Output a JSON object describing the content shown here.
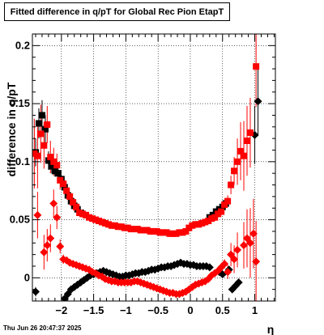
{
  "chart_data": {
    "type": "scatter",
    "title": "Fitted difference in q/pT for Global Rec Pion EtapT",
    "xlabel": "η",
    "ylabel": "difference in q/pT",
    "xlim": [
      -2.45,
      1.32
    ],
    "ylim": [
      -0.02,
      0.21
    ],
    "x_ticks": [
      -2,
      -1.5,
      -1,
      -0.5,
      0,
      0.5,
      1
    ],
    "x_tick_labels": [
      "−2",
      "−1.5",
      "−1",
      "−0.5",
      "0",
      "0.5",
      "1"
    ],
    "y_ticks": [
      0,
      0.05,
      0.1,
      0.15,
      0.2
    ],
    "y_tick_labels": [
      "0",
      "0.05",
      "0.1",
      "0.15",
      "0.2"
    ],
    "grid": true,
    "series": [
      {
        "color": "#000000",
        "marker": "square",
        "points": [
          [
            -2.4,
            0.108,
            0.012
          ],
          [
            -2.35,
            0.133,
            0.013
          ],
          [
            -2.3,
            0.14,
            0.013
          ],
          [
            -2.25,
            0.128,
            0.012
          ],
          [
            -2.2,
            0.101,
            0.008
          ],
          [
            -2.15,
            0.096,
            0.006
          ],
          [
            -2.1,
            0.092,
            0.005
          ],
          [
            -2.05,
            0.09,
            0.004
          ],
          [
            -2.0,
            0.085,
            0.003
          ],
          [
            -1.95,
            0.078,
            0.003
          ],
          [
            -1.9,
            0.071,
            0.002
          ],
          [
            -1.85,
            0.066,
            0.002
          ],
          [
            -1.8,
            0.062,
            0.002
          ],
          [
            -1.75,
            0.059,
            0.002
          ],
          [
            -1.7,
            0.056,
            0.002
          ],
          [
            0.3,
            0.052,
            0.002
          ],
          [
            0.35,
            0.054,
            0.002
          ],
          [
            0.4,
            0.057,
            0.002
          ],
          [
            0.45,
            0.059,
            0.002
          ],
          [
            0.5,
            0.061,
            0.002
          ],
          [
            0.55,
            0.064,
            0.003
          ]
        ]
      },
      {
        "color": "#000000",
        "marker": "diamond",
        "points": [
          [
            -2.4,
            -0.012,
            0.004
          ],
          [
            -1.95,
            -0.018,
            0.002
          ],
          [
            -1.9,
            -0.014,
            0.002
          ],
          [
            -1.85,
            -0.01,
            0.002
          ],
          [
            -1.8,
            -0.008,
            0.002
          ],
          [
            -1.75,
            -0.006,
            0.002
          ],
          [
            -1.7,
            -0.004,
            0.002
          ],
          [
            -1.65,
            -0.002,
            0.002
          ],
          [
            -1.6,
            0.0,
            0.002
          ],
          [
            -1.55,
            0.002,
            0.002
          ],
          [
            -1.5,
            0.003,
            0.002
          ],
          [
            -1.45,
            0.004,
            0.002
          ],
          [
            -1.4,
            0.005,
            0.002
          ],
          [
            -1.35,
            0.006,
            0.002
          ],
          [
            -1.3,
            0.005,
            0.002
          ],
          [
            -1.25,
            0.004,
            0.002
          ],
          [
            -1.2,
            0.003,
            0.002
          ],
          [
            -1.15,
            0.002,
            0.002
          ],
          [
            -1.1,
            0.001,
            0.002
          ],
          [
            -1.05,
            0.001,
            0.002
          ],
          [
            -1.0,
            0.002,
            0.002
          ],
          [
            -0.95,
            0.002,
            0.002
          ],
          [
            -0.9,
            0.003,
            0.002
          ],
          [
            -0.85,
            0.004,
            0.002
          ],
          [
            -0.8,
            0.004,
            0.002
          ],
          [
            -0.75,
            0.005,
            0.002
          ],
          [
            -0.7,
            0.005,
            0.002
          ],
          [
            -0.65,
            0.006,
            0.002
          ],
          [
            -0.6,
            0.007,
            0.002
          ],
          [
            -0.55,
            0.007,
            0.002
          ],
          [
            -0.5,
            0.008,
            0.002
          ],
          [
            -0.45,
            0.009,
            0.002
          ],
          [
            -0.4,
            0.009,
            0.002
          ],
          [
            -0.35,
            0.01,
            0.002
          ],
          [
            -0.3,
            0.01,
            0.002
          ],
          [
            -0.25,
            0.011,
            0.002
          ],
          [
            -0.2,
            0.012,
            0.002
          ],
          [
            -0.15,
            0.013,
            0.002
          ],
          [
            -0.1,
            0.012,
            0.002
          ],
          [
            -0.05,
            0.012,
            0.002
          ],
          [
            0.0,
            0.011,
            0.002
          ],
          [
            0.05,
            0.011,
            0.002
          ],
          [
            0.1,
            0.01,
            0.002
          ],
          [
            0.15,
            0.01,
            0.002
          ],
          [
            0.2,
            0.01,
            0.002
          ],
          [
            0.25,
            0.01,
            0.002
          ],
          [
            0.3,
            0.009,
            0.002
          ],
          [
            0.45,
            0.005,
            0.002
          ],
          [
            0.5,
            0.003,
            0.002
          ],
          [
            0.6,
            0.007,
            0.003
          ],
          [
            0.65,
            -0.01,
            0.003
          ],
          [
            0.7,
            -0.007,
            0.003
          ],
          [
            0.75,
            -0.004,
            0.003
          ],
          [
            1.0,
            0.123,
            0.025
          ],
          [
            1.05,
            0.152,
            0.03
          ]
        ]
      },
      {
        "color": "#ff0000",
        "marker": "square",
        "points": [
          [
            -2.42,
            0.107,
            0.03
          ],
          [
            -2.37,
            0.105,
            0.028
          ],
          [
            -2.32,
            0.124,
            0.025
          ],
          [
            -2.27,
            0.114,
            0.02
          ],
          [
            -2.22,
            0.132,
            0.016
          ],
          [
            -2.17,
            0.104,
            0.014
          ],
          [
            -2.12,
            0.1,
            0.012
          ],
          [
            -2.07,
            0.097,
            0.01
          ],
          [
            -2.02,
            0.084,
            0.008
          ],
          [
            -1.97,
            0.081,
            0.006
          ],
          [
            -1.92,
            0.075,
            0.005
          ],
          [
            -1.87,
            0.07,
            0.004
          ],
          [
            -1.82,
            0.065,
            0.004
          ],
          [
            -1.77,
            0.061,
            0.003
          ],
          [
            -1.72,
            0.056,
            0.003
          ],
          [
            -1.67,
            0.055,
            0.003
          ],
          [
            -1.62,
            0.054,
            0.002
          ],
          [
            -1.57,
            0.052,
            0.002
          ],
          [
            -1.52,
            0.051,
            0.002
          ],
          [
            -1.47,
            0.05,
            0.002
          ],
          [
            -1.42,
            0.049,
            0.002
          ],
          [
            -1.37,
            0.048,
            0.002
          ],
          [
            -1.32,
            0.047,
            0.002
          ],
          [
            -1.27,
            0.046,
            0.002
          ],
          [
            -1.22,
            0.045,
            0.002
          ],
          [
            -1.17,
            0.045,
            0.002
          ],
          [
            -1.12,
            0.044,
            0.002
          ],
          [
            -1.07,
            0.044,
            0.002
          ],
          [
            -1.02,
            0.043,
            0.002
          ],
          [
            -0.97,
            0.043,
            0.002
          ],
          [
            -0.92,
            0.042,
            0.002
          ],
          [
            -0.87,
            0.042,
            0.002
          ],
          [
            -0.82,
            0.042,
            0.002
          ],
          [
            -0.77,
            0.041,
            0.002
          ],
          [
            -0.72,
            0.041,
            0.002
          ],
          [
            -0.67,
            0.041,
            0.002
          ],
          [
            -0.62,
            0.04,
            0.002
          ],
          [
            -0.57,
            0.04,
            0.002
          ],
          [
            -0.52,
            0.04,
            0.002
          ],
          [
            -0.47,
            0.039,
            0.002
          ],
          [
            -0.42,
            0.039,
            0.002
          ],
          [
            -0.37,
            0.039,
            0.002
          ],
          [
            -0.32,
            0.038,
            0.002
          ],
          [
            -0.27,
            0.038,
            0.002
          ],
          [
            -0.22,
            0.038,
            0.002
          ],
          [
            -0.17,
            0.039,
            0.002
          ],
          [
            -0.12,
            0.039,
            0.002
          ],
          [
            -0.07,
            0.04,
            0.002
          ],
          [
            -0.02,
            0.043,
            0.002
          ],
          [
            0.03,
            0.045,
            0.002
          ],
          [
            0.08,
            0.046,
            0.002
          ],
          [
            0.13,
            0.046,
            0.002
          ],
          [
            0.18,
            0.047,
            0.002
          ],
          [
            0.23,
            0.048,
            0.002
          ],
          [
            0.28,
            0.049,
            0.002
          ],
          [
            0.33,
            0.051,
            0.002
          ],
          [
            0.38,
            0.052,
            0.003
          ],
          [
            0.43,
            0.055,
            0.003
          ],
          [
            0.48,
            0.057,
            0.003
          ],
          [
            0.53,
            0.063,
            0.004
          ],
          [
            0.58,
            0.066,
            0.005
          ],
          [
            0.63,
            0.08,
            0.008
          ],
          [
            0.68,
            0.092,
            0.012
          ],
          [
            0.73,
            0.1,
            0.02
          ],
          [
            0.78,
            0.109,
            0.025
          ],
          [
            0.83,
            0.105,
            0.03
          ],
          [
            0.88,
            0.118,
            0.03
          ],
          [
            0.93,
            0.125,
            0.03
          ],
          [
            1.02,
            0.182,
            0.035
          ]
        ]
      },
      {
        "color": "#ff0000",
        "marker": "diamond",
        "points": [
          [
            -2.37,
            0.054,
            0.02
          ],
          [
            -2.27,
            0.022,
            0.015
          ],
          [
            -2.22,
            0.028,
            0.014
          ],
          [
            -2.17,
            0.034,
            0.012
          ],
          [
            -2.12,
            0.064,
            0.012
          ],
          [
            -2.07,
            0.052,
            0.01
          ],
          [
            -2.02,
            0.027,
            0.006
          ],
          [
            -1.97,
            0.016,
            0.004
          ],
          [
            -1.92,
            0.015,
            0.003
          ],
          [
            -1.87,
            0.013,
            0.003
          ],
          [
            -1.82,
            0.012,
            0.002
          ],
          [
            -1.77,
            0.011,
            0.002
          ],
          [
            -1.72,
            0.01,
            0.002
          ],
          [
            -1.67,
            0.009,
            0.002
          ],
          [
            -1.62,
            0.008,
            0.002
          ],
          [
            -1.57,
            0.007,
            0.002
          ],
          [
            -1.52,
            0.005,
            0.002
          ],
          [
            -1.47,
            0.004,
            0.002
          ],
          [
            -1.42,
            0.002,
            0.002
          ],
          [
            -1.37,
            0.001,
            0.002
          ],
          [
            -1.32,
            -0.001,
            0.002
          ],
          [
            -1.27,
            -0.002,
            0.002
          ],
          [
            -1.22,
            -0.003,
            0.002
          ],
          [
            -1.17,
            -0.003,
            0.002
          ],
          [
            -1.12,
            -0.004,
            0.002
          ],
          [
            -1.07,
            -0.004,
            0.002
          ],
          [
            -1.02,
            -0.004,
            0.002
          ],
          [
            -0.97,
            -0.004,
            0.002
          ],
          [
            -0.92,
            -0.004,
            0.002
          ],
          [
            -0.87,
            -0.003,
            0.002
          ],
          [
            -0.82,
            -0.003,
            0.002
          ],
          [
            -0.77,
            -0.004,
            0.002
          ],
          [
            -0.72,
            -0.005,
            0.002
          ],
          [
            -0.67,
            -0.006,
            0.002
          ],
          [
            -0.62,
            -0.007,
            0.002
          ],
          [
            -0.57,
            -0.008,
            0.002
          ],
          [
            -0.52,
            -0.009,
            0.002
          ],
          [
            -0.47,
            -0.01,
            0.002
          ],
          [
            -0.42,
            -0.011,
            0.002
          ],
          [
            -0.37,
            -0.012,
            0.002
          ],
          [
            -0.32,
            -0.013,
            0.002
          ],
          [
            -0.27,
            -0.013,
            0.002
          ],
          [
            -0.22,
            -0.014,
            0.002
          ],
          [
            -0.17,
            -0.014,
            0.002
          ],
          [
            -0.12,
            -0.013,
            0.002
          ],
          [
            -0.07,
            -0.012,
            0.002
          ],
          [
            -0.02,
            -0.01,
            0.002
          ],
          [
            0.03,
            -0.008,
            0.002
          ],
          [
            0.08,
            -0.006,
            0.002
          ],
          [
            0.13,
            -0.005,
            0.002
          ],
          [
            0.18,
            -0.004,
            0.002
          ],
          [
            0.23,
            -0.003,
            0.002
          ],
          [
            0.28,
            -0.001,
            0.002
          ],
          [
            0.33,
            0.002,
            0.002
          ],
          [
            0.38,
            0.004,
            0.002
          ],
          [
            0.43,
            0.006,
            0.003
          ],
          [
            0.48,
            0.009,
            0.003
          ],
          [
            0.53,
            0.012,
            0.004
          ],
          [
            0.58,
            0.005,
            0.006
          ],
          [
            0.63,
            0.02,
            0.01
          ],
          [
            0.68,
            0.016,
            0.012
          ],
          [
            0.73,
            0.024,
            0.015
          ],
          [
            0.83,
            0.028,
            0.02
          ],
          [
            0.88,
            0.034,
            0.025
          ],
          [
            0.93,
            0.03,
            0.03
          ],
          [
            0.98,
            0.038,
            0.03
          ],
          [
            1.02,
            0.014,
            0.035
          ]
        ]
      }
    ]
  },
  "footer": {
    "date": "Thu Jun 26 20:47:37 2025"
  }
}
